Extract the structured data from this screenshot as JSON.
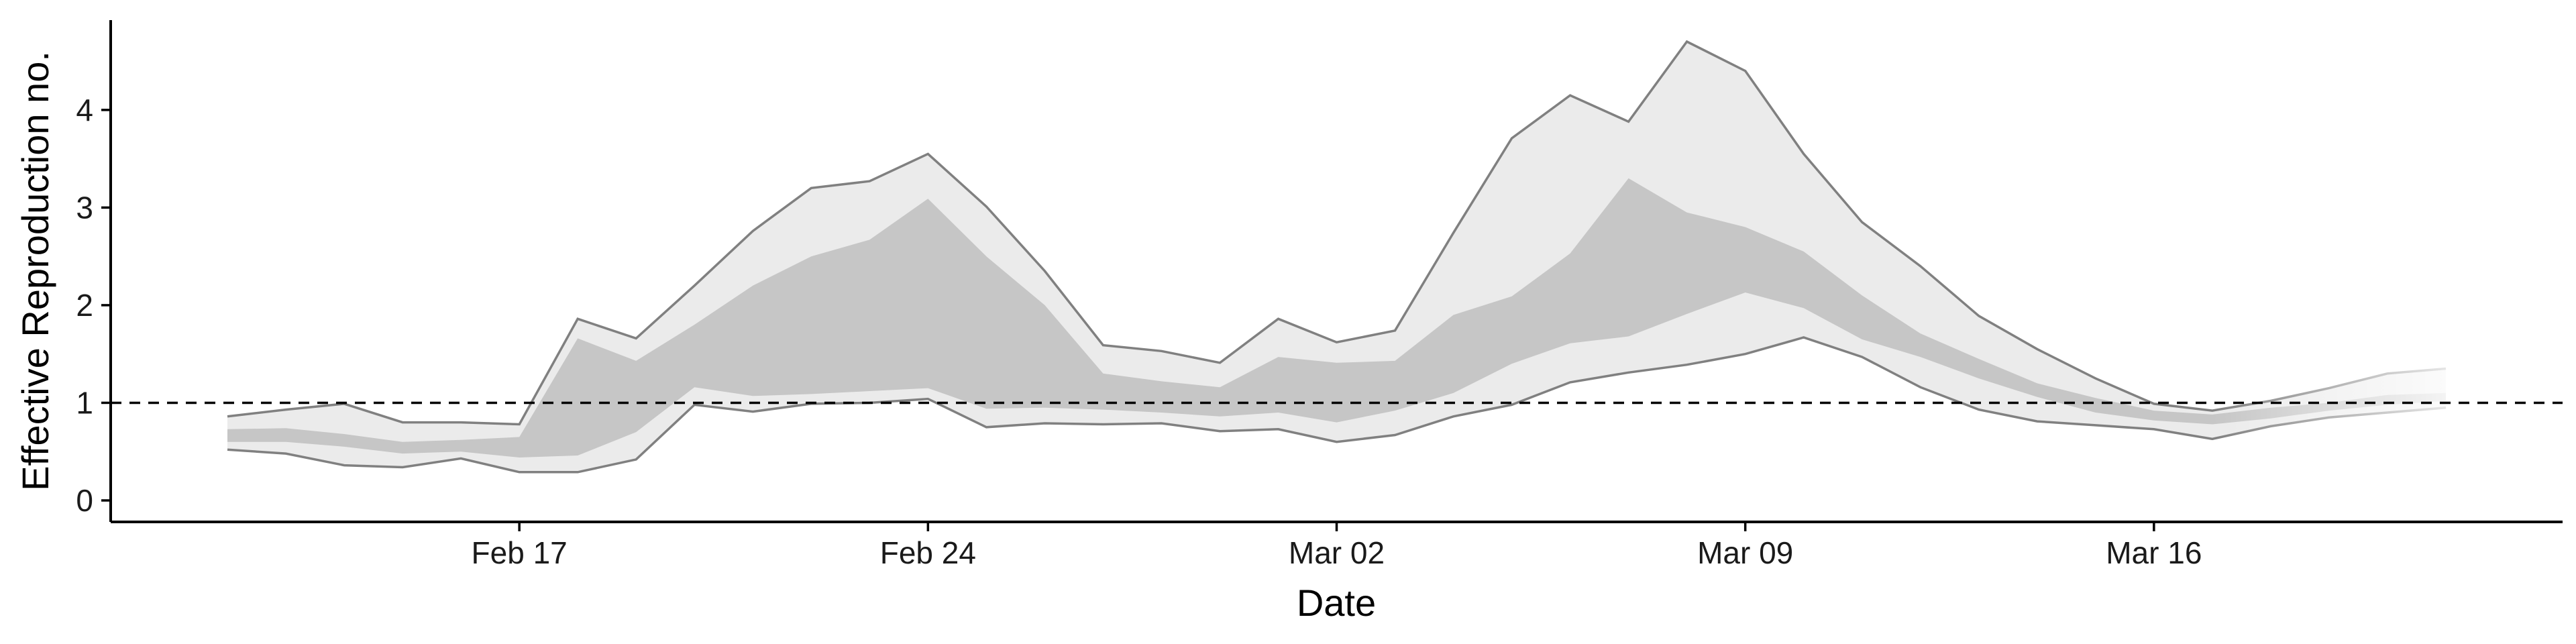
{
  "chart_data": {
    "type": "area",
    "title": "",
    "xlabel": "Date",
    "ylabel": "Effective Reproduction no.",
    "x_ticks": [
      "Feb 17",
      "Feb 24",
      "Mar 02",
      "Mar 09",
      "Mar 16"
    ],
    "y_ticks": [
      0,
      1,
      2,
      3,
      4
    ],
    "xlim": [
      "2020-02-10",
      "2020-03-23"
    ],
    "ylim": [
      -0.22,
      4.92
    ],
    "reference_line": {
      "y": 1,
      "style": "dashed"
    },
    "grid": false,
    "legend": "none",
    "colors": {
      "outer_band": "#ebebeb",
      "inner_band": "#c6c6c6",
      "bound_line": "#808080",
      "reference": "#000000"
    },
    "x": [
      "2020-02-12",
      "2020-02-13",
      "2020-02-14",
      "2020-02-15",
      "2020-02-16",
      "2020-02-17",
      "2020-02-18",
      "2020-02-19",
      "2020-02-20",
      "2020-02-21",
      "2020-02-22",
      "2020-02-23",
      "2020-02-24",
      "2020-02-25",
      "2020-02-26",
      "2020-02-27",
      "2020-02-28",
      "2020-02-29",
      "2020-03-01",
      "2020-03-02",
      "2020-03-03",
      "2020-03-04",
      "2020-03-05",
      "2020-03-06",
      "2020-03-07",
      "2020-03-08",
      "2020-03-09",
      "2020-03-10",
      "2020-03-11",
      "2020-03-12",
      "2020-03-13",
      "2020-03-14",
      "2020-03-15",
      "2020-03-16",
      "2020-03-17",
      "2020-03-18",
      "2020-03-19",
      "2020-03-20",
      "2020-03-21"
    ],
    "series": [
      {
        "values": [
          0.52,
          0.48,
          0.36,
          0.34,
          0.43,
          0.29,
          0.29,
          0.42,
          0.98,
          0.91,
          0.99,
          1.0,
          1.04,
          0.75,
          0.79,
          0.78,
          0.79,
          0.71,
          0.73,
          0.6,
          0.67,
          0.86,
          0.98,
          1.21,
          1.31,
          1.39,
          1.5,
          1.67,
          1.47,
          1.16,
          0.93,
          0.81,
          0.77,
          0.73,
          0.63,
          0.76,
          0.85,
          0.9,
          0.95
        ]
      },
      {
        "values": [
          0.6,
          0.6,
          0.55,
          0.48,
          0.5,
          0.44,
          0.46,
          0.7,
          1.16,
          1.07,
          1.09,
          1.12,
          1.15,
          0.94,
          0.95,
          0.93,
          0.9,
          0.86,
          0.9,
          0.8,
          0.92,
          1.1,
          1.4,
          1.61,
          1.68,
          1.91,
          2.13,
          1.97,
          1.65,
          1.47,
          1.25,
          1.06,
          0.9,
          0.82,
          0.78,
          0.84,
          0.92,
          0.98,
          1.02
        ]
      },
      {
        "values": [
          0.73,
          0.74,
          0.68,
          0.6,
          0.62,
          0.65,
          1.66,
          1.43,
          1.8,
          2.2,
          2.5,
          2.67,
          3.09,
          2.5,
          2.0,
          1.3,
          1.22,
          1.16,
          1.47,
          1.41,
          1.43,
          1.9,
          2.09,
          2.53,
          3.3,
          2.95,
          2.8,
          2.55,
          2.1,
          1.71,
          1.45,
          1.2,
          1.05,
          0.92,
          0.88,
          0.95,
          1.0,
          1.08,
          1.1
        ]
      },
      {
        "values": [
          0.86,
          0.93,
          0.99,
          0.8,
          0.8,
          0.78,
          1.86,
          1.66,
          2.2,
          2.76,
          3.2,
          3.27,
          3.55,
          3.01,
          2.35,
          1.59,
          1.53,
          1.41,
          1.86,
          1.62,
          1.74,
          2.74,
          3.71,
          4.15,
          3.88,
          4.7,
          4.4,
          3.55,
          2.85,
          2.4,
          1.89,
          1.55,
          1.25,
          0.99,
          0.92,
          1.02,
          1.15,
          1.3,
          1.35
        ]
      }
    ]
  }
}
